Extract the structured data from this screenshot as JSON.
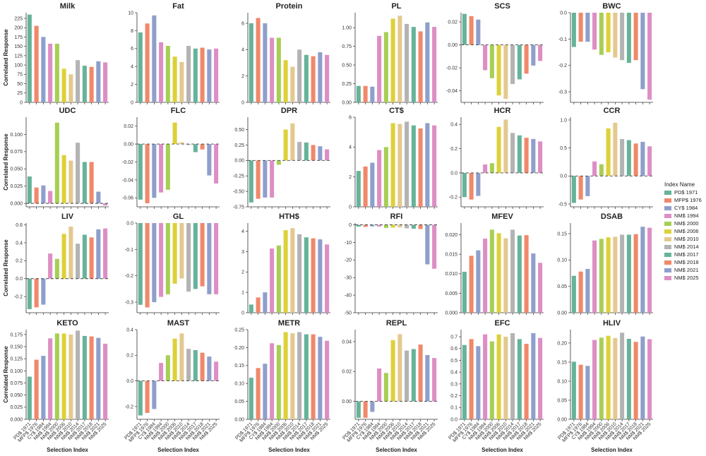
{
  "chart_data": {
    "type": "bar",
    "categories": [
      "PD$ 1971",
      "MFP$ 1976",
      "CY$ 1984",
      "NM$ 1994",
      "NM$ 2000",
      "NM$ 2006",
      "NM$ 2010",
      "NM$ 2014",
      "NM$ 2017",
      "NM$ 2018",
      "NM$ 2021",
      "NM$ 2025"
    ],
    "category_colors": [
      "#66b39a",
      "#f0886a",
      "#8e9fcb",
      "#dd8ec4",
      "#a6cf55",
      "#ddd139",
      "#e3c98e",
      "#b3b3b3",
      "#66b39a",
      "#f0886a",
      "#8e9fcb",
      "#dd8ec4"
    ],
    "legend": {
      "title": "Index Name",
      "position": "right"
    },
    "xlabel": "Selection Index",
    "ylabel": "Correlated Response",
    "grid": false,
    "panels": [
      {
        "title": "Milk",
        "ylim": [
          0,
          240
        ],
        "yticks": [
          0,
          25,
          50,
          75,
          100,
          125,
          150,
          175,
          200,
          225
        ],
        "values": [
          235,
          205,
          175,
          157,
          157,
          90,
          75,
          113,
          98,
          95,
          110,
          107
        ]
      },
      {
        "title": "Fat",
        "ylim": [
          0,
          10
        ],
        "yticks": [
          0,
          2,
          4,
          6,
          8,
          10
        ],
        "values": [
          7.8,
          8.8,
          9.7,
          6.7,
          6.3,
          5.1,
          4.5,
          6.3,
          6.0,
          6.1,
          5.9,
          6.0
        ]
      },
      {
        "title": "Protein",
        "ylim": [
          0,
          6.8
        ],
        "yticks": [
          0,
          2,
          4,
          6
        ],
        "values": [
          6.0,
          6.4,
          6.0,
          4.9,
          4.9,
          3.2,
          2.7,
          4.0,
          3.6,
          3.5,
          3.8,
          3.6
        ]
      },
      {
        "title": "PL",
        "ylim": [
          0,
          1.2
        ],
        "yticks": [
          0,
          0.25,
          0.5,
          0.75,
          1.0
        ],
        "ytick_labels": [
          "0.00",
          "0.25",
          "0.50",
          "0.75",
          "1.00"
        ],
        "values": [
          0.22,
          0.22,
          0.21,
          0.89,
          0.94,
          1.12,
          1.16,
          1.05,
          1.01,
          0.95,
          1.07,
          1.01
        ]
      },
      {
        "title": "SCS",
        "ylim": [
          -0.05,
          0.028
        ],
        "yticks": [
          -0.04,
          -0.02,
          0,
          0.02
        ],
        "ytick_labels": [
          "-0.04",
          "-0.02",
          "0.00",
          "0.02"
        ],
        "values": [
          0.027,
          0.025,
          0.022,
          -0.022,
          -0.029,
          -0.044,
          -0.047,
          -0.034,
          -0.03,
          -0.025,
          -0.018,
          -0.014
        ]
      },
      {
        "title": "BWC",
        "ylim": [
          -0.34,
          0
        ],
        "yticks": [
          -0.3,
          -0.2,
          -0.1,
          0
        ],
        "ytick_labels": [
          "-0.3",
          "-0.2",
          "-0.1",
          "0.0"
        ],
        "values": [
          -0.13,
          -0.11,
          -0.11,
          -0.14,
          -0.16,
          -0.15,
          -0.17,
          -0.18,
          -0.19,
          -0.18,
          -0.29,
          -0.33
        ]
      },
      {
        "title": "UDC",
        "ylim": [
          -0.005,
          0.125
        ],
        "yticks": [
          0,
          0.025,
          0.05,
          0.075,
          0.1
        ],
        "ytick_labels": [
          "0.000",
          "0.025",
          "0.050",
          "0.075",
          "0.100"
        ],
        "values": [
          0.039,
          0.023,
          0.026,
          0.018,
          0.117,
          0.07,
          0.062,
          0.088,
          0.06,
          0.06,
          0.017,
          -0.003
        ]
      },
      {
        "title": "FLC",
        "ylim": [
          -0.07,
          0.03
        ],
        "yticks": [
          -0.06,
          -0.04,
          -0.02,
          0,
          0.02
        ],
        "ytick_labels": [
          "-0.06",
          "-0.04",
          "-0.02",
          "0.00",
          "0.02"
        ],
        "values": [
          -0.062,
          -0.066,
          -0.06,
          -0.054,
          -0.051,
          0.024,
          0.002,
          -0.001,
          -0.009,
          -0.006,
          -0.035,
          -0.044
        ]
      },
      {
        "title": "DPR",
        "ylim": [
          -0.75,
          0.7
        ],
        "yticks": [
          -0.75,
          -0.5,
          -0.25,
          0,
          0.25,
          0.5
        ],
        "ytick_labels": [
          "-0.75",
          "-0.50",
          "-0.25",
          "0.00",
          "0.25",
          "0.50"
        ],
        "values": [
          -0.68,
          -0.62,
          -0.6,
          -0.6,
          -0.07,
          0.5,
          0.6,
          0.3,
          0.29,
          0.25,
          0.23,
          0.18
        ]
      },
      {
        "title": "CT$",
        "ylim": [
          0,
          6
        ],
        "yticks": [
          0,
          2,
          4,
          6
        ],
        "values": [
          2.4,
          2.7,
          2.95,
          3.8,
          4.0,
          5.6,
          5.55,
          5.7,
          5.45,
          5.25,
          5.6,
          5.45
        ]
      },
      {
        "title": "HCR",
        "ylim": [
          -0.28,
          0.46
        ],
        "yticks": [
          -0.2,
          0,
          0.2,
          0.4
        ],
        "ytick_labels": [
          "-0.2",
          "0.0",
          "0.2",
          "0.4"
        ],
        "values": [
          -0.2,
          -0.22,
          -0.19,
          0.07,
          0.08,
          0.38,
          0.44,
          0.33,
          0.31,
          0.29,
          0.28,
          0.26
        ]
      },
      {
        "title": "CCR",
        "ylim": [
          -0.55,
          1.05
        ],
        "yticks": [
          -0.5,
          0,
          0.5,
          1.0
        ],
        "ytick_labels": [
          "-0.5",
          "0.0",
          "0.5",
          "1.0"
        ],
        "values": [
          -0.48,
          -0.42,
          -0.36,
          0.26,
          0.21,
          0.85,
          0.95,
          0.66,
          0.64,
          0.58,
          0.61,
          0.53
        ]
      },
      {
        "title": "LIV",
        "ylim": [
          -0.38,
          0.62
        ],
        "yticks": [
          -0.2,
          0,
          0.2,
          0.4,
          0.6
        ],
        "ytick_labels": [
          "-0.2",
          "0.0",
          "0.2",
          "0.4",
          "0.6"
        ],
        "values": [
          -0.34,
          -0.32,
          -0.29,
          0.28,
          0.22,
          0.5,
          0.58,
          0.39,
          0.49,
          0.46,
          0.55,
          0.56
        ]
      },
      {
        "title": "GL",
        "ylim": [
          -0.34,
          0
        ],
        "yticks": [
          -0.3,
          -0.2,
          -0.1,
          0
        ],
        "ytick_labels": [
          "-0.3",
          "-0.2",
          "-0.1",
          "0.0"
        ],
        "values": [
          -0.31,
          -0.32,
          -0.3,
          -0.28,
          -0.27,
          -0.23,
          -0.21,
          -0.26,
          -0.25,
          -0.24,
          -0.27,
          -0.27
        ]
      },
      {
        "title": "HTH$",
        "ylim": [
          0,
          4.4
        ],
        "yticks": [
          0,
          1,
          2,
          3,
          4
        ],
        "values": [
          0.4,
          0.75,
          1.0,
          3.15,
          3.3,
          4.05,
          4.15,
          3.85,
          3.7,
          3.65,
          3.6,
          3.35
        ]
      },
      {
        "title": "RFI",
        "ylim": [
          -50,
          1
        ],
        "yticks": [
          -50,
          -40,
          -30,
          -20,
          -10,
          0
        ],
        "values": [
          -1.0,
          -1.2,
          -0.9,
          -1.0,
          -1.8,
          -1.6,
          -1.5,
          -2.0,
          -2.2,
          -2.4,
          -22.5,
          -25.0
        ]
      },
      {
        "title": "MFEV",
        "ylim": [
          0,
          0.023
        ],
        "yticks": [
          0,
          0.005,
          0.01,
          0.015,
          0.02
        ],
        "ytick_labels": [
          "0.000",
          "0.005",
          "0.010",
          "0.015",
          "0.020"
        ],
        "values": [
          0.0105,
          0.0146,
          0.016,
          0.019,
          0.0213,
          0.0204,
          0.0191,
          0.0213,
          0.0198,
          0.0199,
          0.0152,
          0.0128
        ]
      },
      {
        "title": "DSAB",
        "ylim": [
          0,
          0.17
        ],
        "yticks": [
          0,
          0.05,
          0.1,
          0.15
        ],
        "ytick_labels": [
          "0.00",
          "0.05",
          "0.10",
          "0.15"
        ],
        "values": [
          0.07,
          0.078,
          0.083,
          0.137,
          0.14,
          0.143,
          0.144,
          0.148,
          0.148,
          0.149,
          0.163,
          0.161
        ]
      },
      {
        "title": "KETO",
        "ylim": [
          0,
          0.185
        ],
        "yticks": [
          0,
          0.025,
          0.05,
          0.075,
          0.1,
          0.125,
          0.15,
          0.175
        ],
        "ytick_labels": [
          "0.000",
          "0.025",
          "0.050",
          "0.075",
          "0.100",
          "0.125",
          "0.150",
          "0.175"
        ],
        "values": [
          0.088,
          0.123,
          0.131,
          0.167,
          0.177,
          0.177,
          0.175,
          0.183,
          0.172,
          0.171,
          0.168,
          0.156
        ]
      },
      {
        "title": "MAST",
        "ylim": [
          -0.3,
          0.4
        ],
        "yticks": [
          -0.2,
          0,
          0.2,
          0.4
        ],
        "ytick_labels": [
          "-0.2",
          "0.0",
          "0.2",
          "0.4"
        ],
        "values": [
          -0.27,
          -0.25,
          -0.22,
          0.14,
          0.2,
          0.33,
          0.37,
          0.25,
          0.24,
          0.22,
          0.19,
          0.15
        ]
      },
      {
        "title": "METR",
        "ylim": [
          0,
          0.25
        ],
        "yticks": [
          0,
          0.05,
          0.1,
          0.15,
          0.2,
          0.25
        ],
        "ytick_labels": [
          "0.00",
          "0.05",
          "0.10",
          "0.15",
          "0.20",
          "0.25"
        ],
        "values": [
          0.116,
          0.143,
          0.155,
          0.212,
          0.207,
          0.243,
          0.24,
          0.243,
          0.237,
          0.237,
          0.23,
          0.219
        ]
      },
      {
        "title": "REPL",
        "ylim": [
          -0.012,
          0.048
        ],
        "yticks": [
          0,
          0.02,
          0.04
        ],
        "ytick_labels": [
          "0.00",
          "0.02",
          "0.04"
        ],
        "values": [
          -0.011,
          -0.011,
          -0.007,
          0.022,
          0.019,
          0.041,
          0.045,
          0.034,
          0.035,
          0.038,
          0.031,
          0.029
        ]
      },
      {
        "title": "EFC",
        "ylim": [
          0,
          0.76
        ],
        "yticks": [
          0,
          0.1,
          0.2,
          0.3,
          0.4,
          0.5,
          0.6,
          0.7
        ],
        "ytick_labels": [
          "0.0",
          "0.1",
          "0.2",
          "0.3",
          "0.4",
          "0.5",
          "0.6",
          "0.7"
        ],
        "values": [
          0.63,
          0.68,
          0.62,
          0.72,
          0.66,
          0.72,
          0.7,
          0.73,
          0.68,
          0.64,
          0.73,
          0.69
        ]
      },
      {
        "title": "HLIV",
        "ylim": [
          0,
          0.235
        ],
        "yticks": [
          0,
          0.05,
          0.1,
          0.15,
          0.2
        ],
        "ytick_labels": [
          "0.00",
          "0.05",
          "0.10",
          "0.15",
          "0.20"
        ],
        "values": [
          0.151,
          0.143,
          0.14,
          0.208,
          0.214,
          0.219,
          0.213,
          0.227,
          0.211,
          0.203,
          0.217,
          0.21
        ]
      }
    ]
  }
}
